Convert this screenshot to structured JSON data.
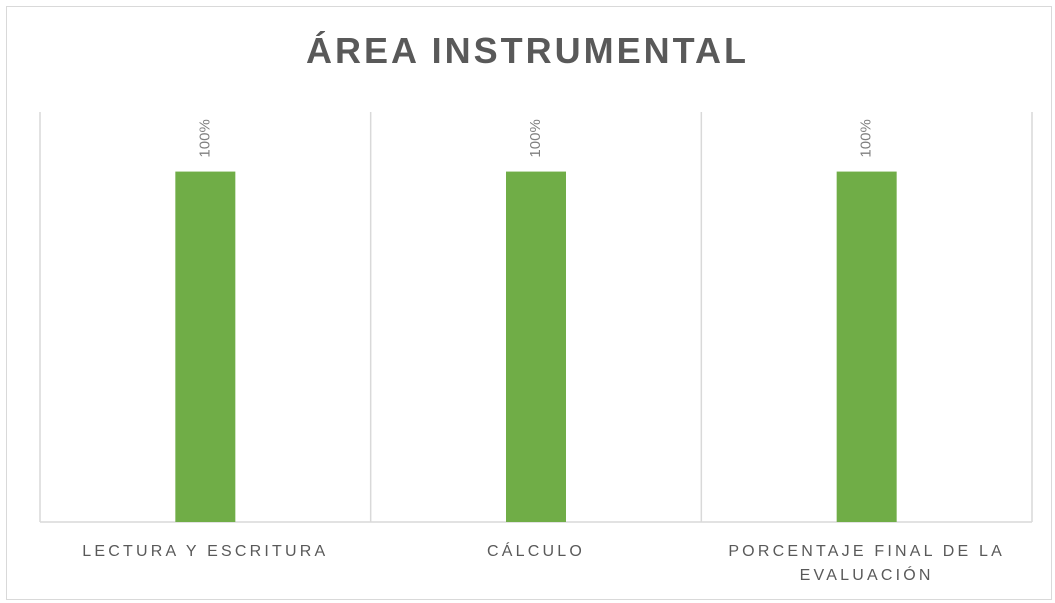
{
  "chart_data": {
    "type": "bar",
    "title": "ÁREA INSTRUMENTAL",
    "categories": [
      "LECTURA Y ESCRITURA",
      "CÁLCULO",
      "PORCENTAJE FINAL DE LA EVALUACIÓN"
    ],
    "values": [
      1.0,
      1.0,
      1.0
    ],
    "data_labels": [
      "100%",
      "100%",
      "100%"
    ],
    "ylim": [
      0,
      1.17
    ],
    "bar_color": "#70ad47",
    "grid": "vertical category separators",
    "legend": "none"
  }
}
